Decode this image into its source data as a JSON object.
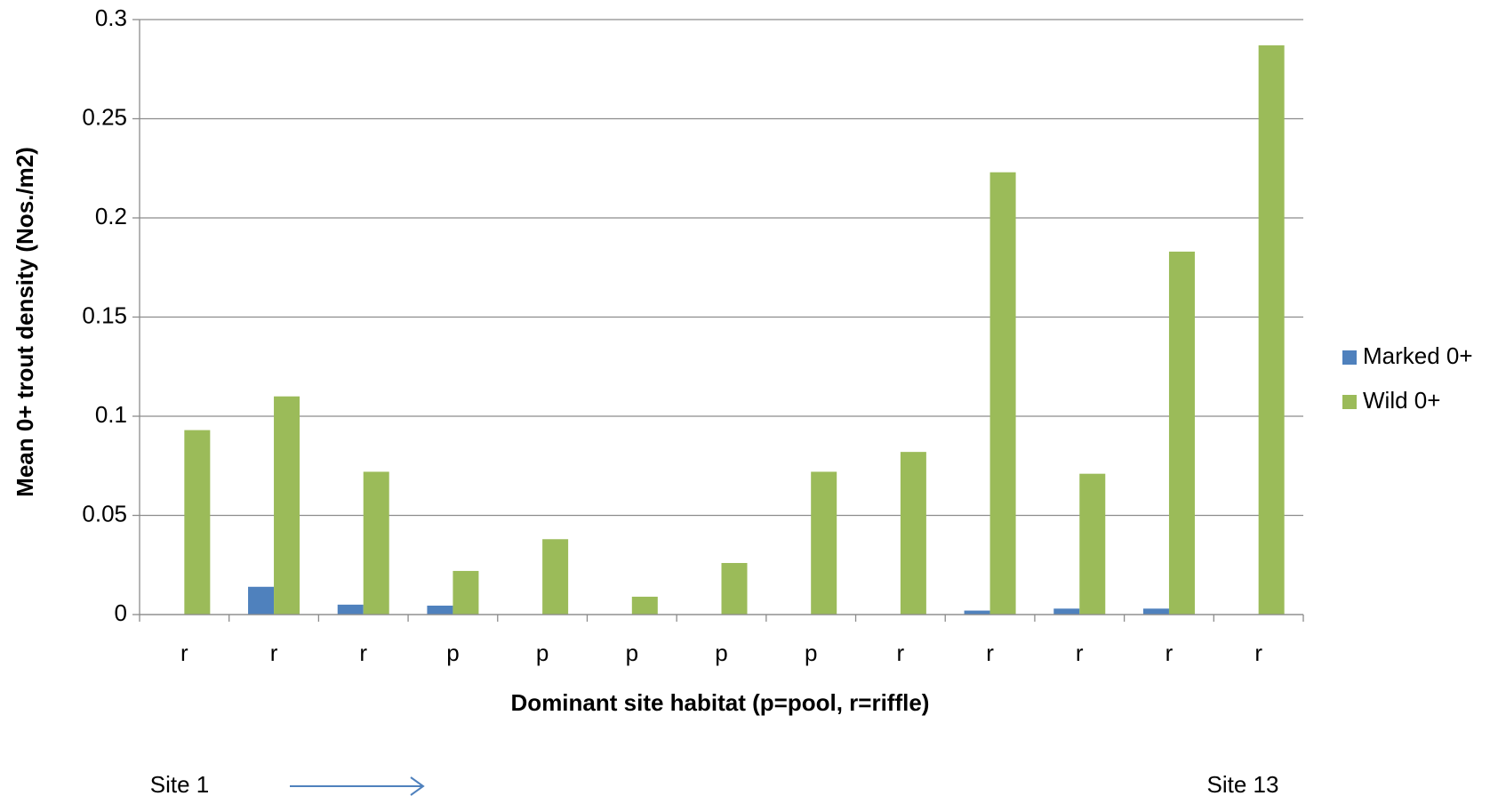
{
  "chart_data": {
    "type": "bar",
    "ylabel": "Mean 0+ trout density (Nos./m2)",
    "xlabel": "Dominant site habitat (p=pool, r=riffle)",
    "categories": [
      "r",
      "r",
      "r",
      "p",
      "p",
      "p",
      "p",
      "p",
      "r",
      "r",
      "r",
      "r",
      "r"
    ],
    "series": [
      {
        "name": "Marked 0+",
        "color": "#4f81bd",
        "values": [
          0,
          0.014,
          0.005,
          0.0045,
          0,
          0,
          0,
          0,
          0,
          0.002,
          0.003,
          0.003,
          0
        ]
      },
      {
        "name": "Wild 0+",
        "color": "#9bbb59",
        "values": [
          0.093,
          0.11,
          0.072,
          0.022,
          0.038,
          0.009,
          0.026,
          0.072,
          0.082,
          0.223,
          0.071,
          0.183,
          0.287
        ]
      }
    ],
    "ylim": [
      0,
      0.3
    ],
    "yticks": [
      0,
      0.05,
      0.1,
      0.15,
      0.2,
      0.25,
      0.3
    ],
    "grid": true,
    "legend": "right",
    "annotations": [
      "Site 1",
      "Site 13"
    ]
  }
}
